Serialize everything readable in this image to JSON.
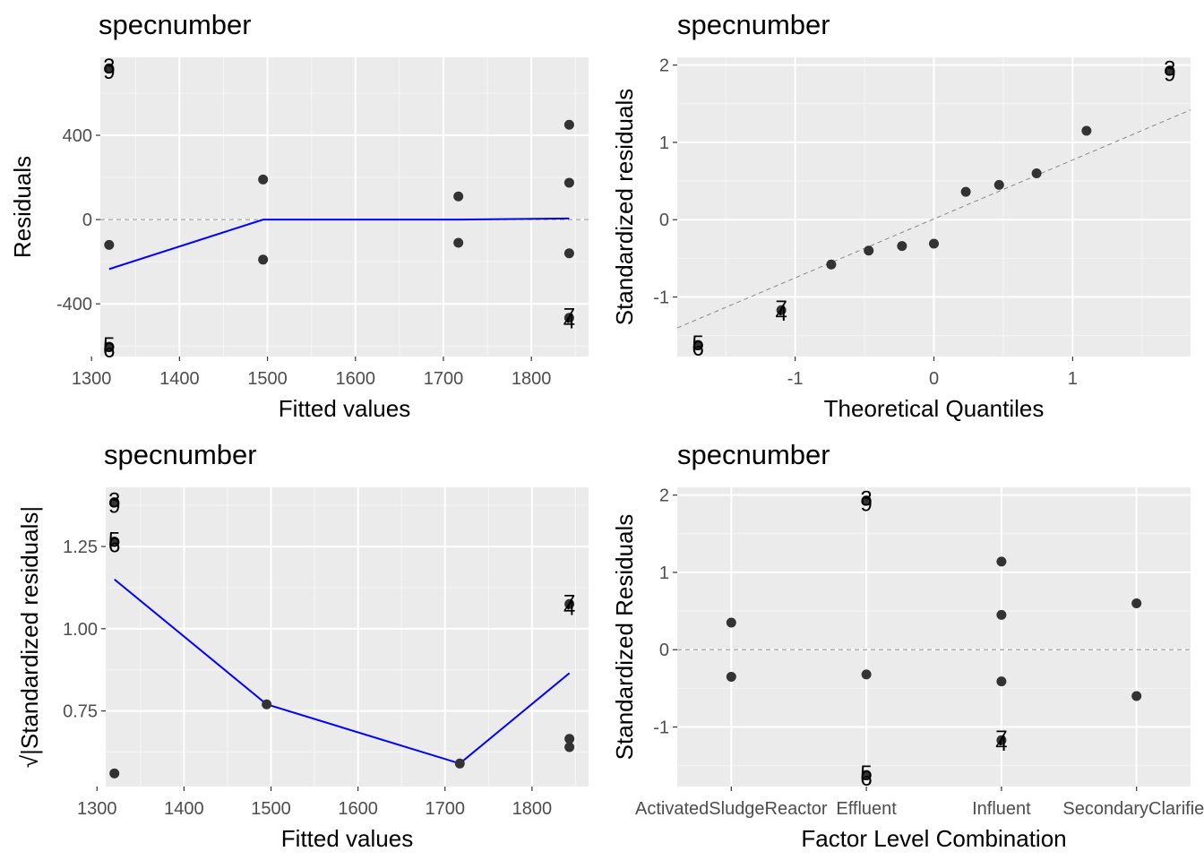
{
  "chart_data": [
    {
      "type": "scatter",
      "title": "specnumber",
      "xlabel": "Fitted values",
      "ylabel": "Residuals",
      "xlim": [
        1310,
        1865
      ],
      "ylim": [
        -650,
        770
      ],
      "xticks": [
        1300,
        1400,
        1500,
        1600,
        1700,
        1800
      ],
      "yticks": [
        -400,
        0,
        400
      ],
      "hline": 0,
      "points": [
        {
          "x": 1320,
          "y": -120
        },
        {
          "x": 1495,
          "y": 190
        },
        {
          "x": 1495,
          "y": -190
        },
        {
          "x": 1717,
          "y": 110
        },
        {
          "x": 1717,
          "y": -110
        },
        {
          "x": 1843,
          "y": 450
        },
        {
          "x": 1843,
          "y": 175
        },
        {
          "x": 1843,
          "y": -160
        }
      ],
      "labeled_points": [
        {
          "x": 1320,
          "y": 718,
          "labels": [
            "3",
            "9"
          ]
        },
        {
          "x": 1320,
          "y": -603,
          "labels": [
            "5",
            "6"
          ]
        },
        {
          "x": 1843,
          "y": -466,
          "labels": [
            "7",
            "4"
          ]
        }
      ],
      "smooth_line": {
        "x": [
          1320,
          1495,
          1717,
          1843
        ],
        "y": [
          -235,
          0,
          0,
          5
        ]
      }
    },
    {
      "type": "scatter",
      "title": "specnumber",
      "xlabel": "Theoretical Quantiles",
      "ylabel": "Standardized residuals",
      "xlim": [
        -1.85,
        1.85
      ],
      "ylim": [
        -1.77,
        2.1
      ],
      "xticks": [
        -1,
        0,
        1
      ],
      "yticks": [
        -1,
        0,
        1,
        2
      ],
      "refline": {
        "x": [
          -1.85,
          1.85
        ],
        "y": [
          -1.4,
          1.42
        ]
      },
      "points": [
        {
          "x": -0.74,
          "y": -0.58
        },
        {
          "x": -0.47,
          "y": -0.4
        },
        {
          "x": -0.23,
          "y": -0.34
        },
        {
          "x": 0.0,
          "y": -0.31
        },
        {
          "x": 0.23,
          "y": 0.36
        },
        {
          "x": 0.47,
          "y": 0.45
        },
        {
          "x": 0.74,
          "y": 0.6
        },
        {
          "x": 1.1,
          "y": 1.15
        }
      ],
      "labeled_points": [
        {
          "x": -1.1,
          "y": -1.17,
          "labels": [
            "7",
            "4"
          ]
        },
        {
          "x": -1.7,
          "y": -1.62,
          "labels": [
            "5",
            "6"
          ]
        },
        {
          "x": 1.7,
          "y": 1.93,
          "labels": [
            "3",
            "9"
          ]
        }
      ]
    },
    {
      "type": "scatter",
      "title": "specnumber",
      "xlabel": "Fitted values",
      "ylabel": "√|Standardized residuals|",
      "xlim": [
        1310,
        1865
      ],
      "ylim": [
        0.52,
        1.43
      ],
      "xticks": [
        1300,
        1400,
        1500,
        1600,
        1700,
        1800
      ],
      "yticks": [
        0.75,
        1.0,
        1.25
      ],
      "yticklabels": [
        "0.75",
        "1.00",
        "1.25"
      ],
      "points": [
        {
          "x": 1320,
          "y": 0.56
        },
        {
          "x": 1495,
          "y": 0.77
        },
        {
          "x": 1717,
          "y": 0.59
        },
        {
          "x": 1843,
          "y": 0.665
        },
        {
          "x": 1843,
          "y": 0.64
        }
      ],
      "labeled_points": [
        {
          "x": 1320,
          "y": 1.385,
          "labels": [
            "3",
            "9"
          ]
        },
        {
          "x": 1320,
          "y": 1.265,
          "labels": [
            "5",
            "6"
          ]
        },
        {
          "x": 1843,
          "y": 1.075,
          "labels": [
            "7",
            "4"
          ]
        }
      ],
      "smooth_line": {
        "x": [
          1320,
          1495,
          1717,
          1843
        ],
        "y": [
          1.15,
          0.77,
          0.59,
          0.865
        ]
      }
    },
    {
      "type": "scatter",
      "title": "specnumber",
      "xlabel": "Factor Level Combination",
      "ylabel": "Standardized Residuals",
      "categories": [
        "ActivatedSludgeReactor",
        "Effluent",
        "Influent",
        "SecondaryClarifier"
      ],
      "ylim": [
        -1.77,
        2.1
      ],
      "yticks": [
        -1,
        0,
        1,
        2
      ],
      "hline": 0,
      "points": [
        {
          "cat": 0,
          "y": 0.35
        },
        {
          "cat": 0,
          "y": -0.35
        },
        {
          "cat": 1,
          "y": -0.32
        },
        {
          "cat": 2,
          "y": 1.14
        },
        {
          "cat": 2,
          "y": 0.45
        },
        {
          "cat": 2,
          "y": -0.41
        },
        {
          "cat": 3,
          "y": 0.6
        },
        {
          "cat": 3,
          "y": -0.6
        }
      ],
      "labeled_points": [
        {
          "cat": 1,
          "y": 1.93,
          "labels": [
            "3",
            "9"
          ]
        },
        {
          "cat": 1,
          "y": -1.62,
          "labels": [
            "5",
            "6"
          ]
        },
        {
          "cat": 2,
          "y": -1.17,
          "labels": [
            "7",
            "4"
          ]
        }
      ]
    }
  ]
}
